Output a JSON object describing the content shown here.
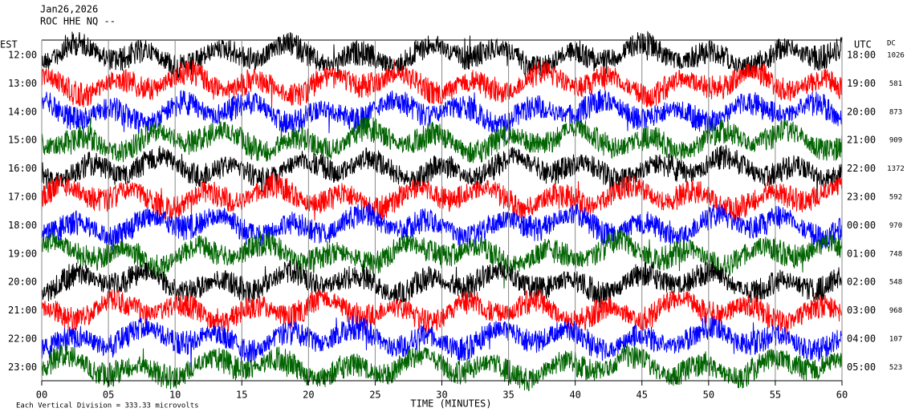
{
  "chart_data": {
    "type": "helicorder",
    "date": "Jan26,2026",
    "station": "ROC HHE NQ --",
    "left_axis_label": "EST",
    "right_axis_label": "UTC",
    "dc_label": "DC",
    "x_label": "TIME (MINUTES)",
    "note": "Each Vertical Division =  333.33 microvolts",
    "xlim": [
      0,
      60
    ],
    "xticks": [
      {
        "value": 0,
        "label": "00"
      },
      {
        "value": 5,
        "label": "05"
      },
      10,
      15,
      20,
      25,
      30,
      35,
      40,
      45,
      50,
      55,
      60
    ],
    "rows": [
      {
        "est": "12:00",
        "utc": "18:00",
        "dc": 1026,
        "color": "#000000"
      },
      {
        "est": "13:00",
        "utc": "19:00",
        "dc": 581,
        "color": "#ff0000"
      },
      {
        "est": "14:00",
        "utc": "20:00",
        "dc": 873,
        "color": "#0000ff"
      },
      {
        "est": "15:00",
        "utc": "21:00",
        "dc": 909,
        "color": "#006400"
      },
      {
        "est": "16:00",
        "utc": "22:00",
        "dc": 1372,
        "color": "#000000"
      },
      {
        "est": "17:00",
        "utc": "23:00",
        "dc": 592,
        "color": "#ff0000"
      },
      {
        "est": "18:00",
        "utc": "00:00",
        "dc": 970,
        "color": "#0000ff"
      },
      {
        "est": "19:00",
        "utc": "01:00",
        "dc": 748,
        "color": "#006400"
      },
      {
        "est": "20:00",
        "utc": "02:00",
        "dc": 548,
        "color": "#000000"
      },
      {
        "est": "21:00",
        "utc": "03:00",
        "dc": 968,
        "color": "#ff0000"
      },
      {
        "est": "22:00",
        "utc": "04:00",
        "dc": 107,
        "color": "#0000ff"
      },
      {
        "est": "23:00",
        "utc": "05:00",
        "dc": 523,
        "color": "#006400"
      }
    ]
  }
}
